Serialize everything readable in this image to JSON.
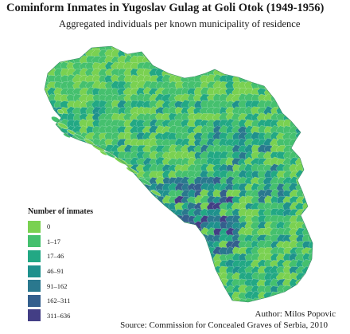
{
  "title": "Cominform Inmates in Yugoslav Gulag at Goli Otok (1949-1956)",
  "subtitle": "Aggregated individuals per known municipality of residence",
  "legend": {
    "title": "Number of inmates",
    "classes": [
      {
        "label": "0",
        "color": "#7ad151"
      },
      {
        "label": "1–17",
        "color": "#45c06e"
      },
      {
        "label": "17–46",
        "color": "#22a884"
      },
      {
        "label": "46–91",
        "color": "#1f918d"
      },
      {
        "label": "91–162",
        "color": "#2a788e"
      },
      {
        "label": "162–311",
        "color": "#345f8d"
      },
      {
        "label": "311–636",
        "color": "#433e85"
      }
    ]
  },
  "credits": {
    "author": "Author: Milos Popovic",
    "source": "Source: Commission for Concealed Graves of Serbia, 2010"
  }
}
